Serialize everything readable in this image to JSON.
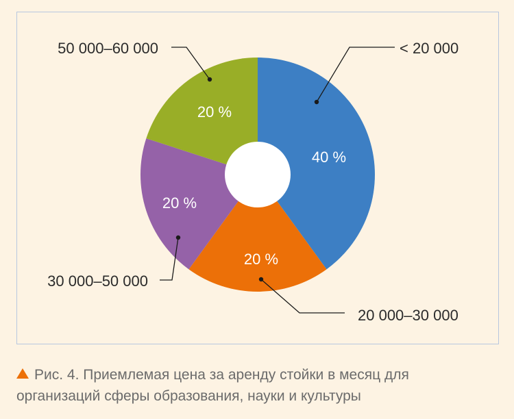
{
  "chart_data": {
    "type": "pie",
    "style": "donut",
    "categories": [
      "< 20 000",
      "20 000–30 000",
      "30 000–50 000",
      "50 000–60 000"
    ],
    "values": [
      40,
      20,
      20,
      20
    ],
    "labels": [
      "40 %",
      "20 %",
      "20 %",
      "20 %"
    ],
    "colors": [
      "#3d7fc4",
      "#ec7008",
      "#9562a8",
      "#99ae27"
    ],
    "unit": "%",
    "legend": "callouts"
  },
  "caption": {
    "text": "Рис. 4. Приемлемая цена за аренду стойки в месяц для организаций сферы образования, науки и культуры",
    "icon": "triangle-up-icon",
    "icon_color": "#ec7008"
  },
  "colors": {
    "background": "#fdf3e3",
    "frame_border": "#b7c7df",
    "donut_hole": "#ffffff"
  }
}
